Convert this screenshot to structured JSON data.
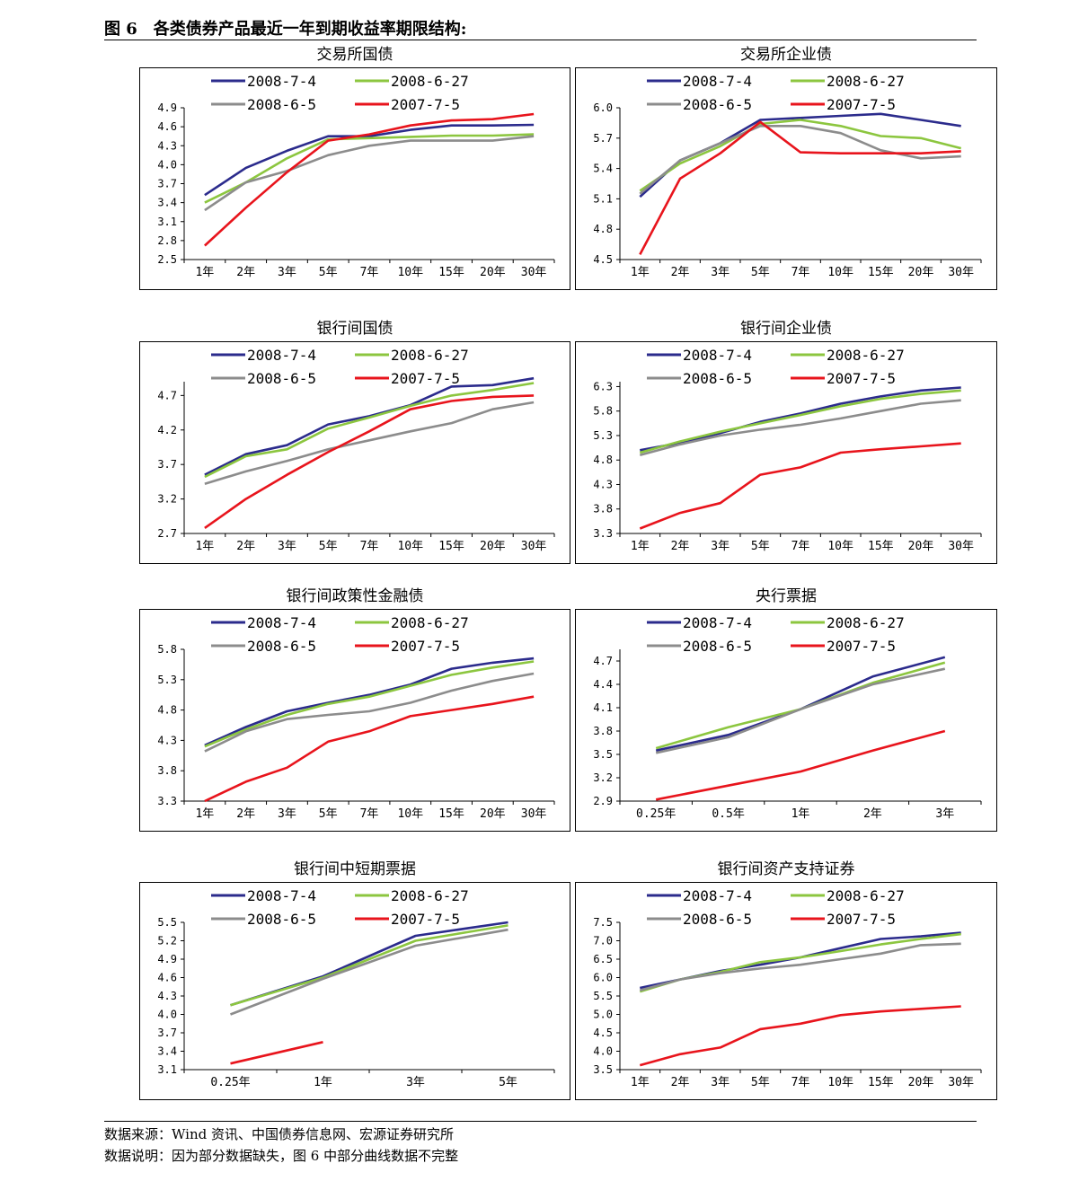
{
  "figure": {
    "title": "图 6　各类债券产品最近一年到期收益率期限结构:",
    "source": "数据来源：Wind 资讯、中国债券信息网、宏源证券研究所",
    "note": "数据说明：因为部分数据缺失，图 6 中部分曲线数据不完整"
  },
  "colors": {
    "2008-7-4": "#2B2B8C",
    "2008-6-27": "#8CC63F",
    "2008-6-5": "#8C8C8C",
    "2007-7-5": "#E8141C"
  },
  "chart_data": [
    {
      "type": "line",
      "title": "交易所国债",
      "categories": [
        "1年",
        "2年",
        "3年",
        "5年",
        "7年",
        "10年",
        "15年",
        "20年",
        "30年"
      ],
      "yticks": [
        "4.9",
        "4.6",
        "4.3",
        "4.0",
        "3.7",
        "3.4",
        "3.1",
        "2.8",
        "2.5"
      ],
      "ylim": [
        2.5,
        4.9
      ],
      "series": [
        {
          "name": "2008-7-4",
          "values": [
            3.52,
            3.95,
            4.22,
            4.45,
            4.45,
            4.55,
            4.62,
            4.62,
            4.63
          ]
        },
        {
          "name": "2008-6-27",
          "values": [
            3.4,
            3.72,
            4.1,
            4.4,
            4.42,
            4.44,
            4.46,
            4.46,
            4.48
          ]
        },
        {
          "name": "2008-6-5",
          "values": [
            3.28,
            3.72,
            3.9,
            4.15,
            4.3,
            4.38,
            4.38,
            4.38,
            4.45
          ]
        },
        {
          "name": "2007-7-5",
          "values": [
            2.72,
            3.32,
            3.88,
            4.38,
            4.48,
            4.62,
            4.7,
            4.72,
            4.8
          ]
        }
      ]
    },
    {
      "type": "line",
      "title": "交易所企业债",
      "categories": [
        "1年",
        "2年",
        "3年",
        "5年",
        "7年",
        "10年",
        "15年",
        "20年",
        "30年"
      ],
      "yticks": [
        "6.0",
        "5.7",
        "5.4",
        "5.1",
        "4.8",
        "4.5"
      ],
      "ylim": [
        4.5,
        6.0
      ],
      "series": [
        {
          "name": "2008-7-4",
          "values": [
            5.12,
            5.48,
            5.65,
            5.88,
            5.9,
            5.92,
            5.94,
            5.88,
            5.82
          ]
        },
        {
          "name": "2008-6-27",
          "values": [
            5.18,
            5.45,
            5.62,
            5.84,
            5.88,
            5.82,
            5.72,
            5.7,
            5.6
          ]
        },
        {
          "name": "2008-6-5",
          "values": [
            5.15,
            5.48,
            5.65,
            5.82,
            5.82,
            5.75,
            5.58,
            5.5,
            5.52
          ]
        },
        {
          "name": "2007-7-5",
          "values": [
            4.55,
            5.3,
            5.55,
            5.86,
            5.56,
            5.55,
            5.55,
            5.55,
            5.57
          ]
        }
      ]
    },
    {
      "type": "line",
      "title": "银行间国债",
      "categories": [
        "1年",
        "2年",
        "3年",
        "5年",
        "7年",
        "10年",
        "15年",
        "20年",
        "30年"
      ],
      "yticks": [
        "4.7",
        "4.2",
        "3.7",
        "3.2",
        "2.7"
      ],
      "ylim": [
        2.7,
        4.9
      ],
      "series": [
        {
          "name": "2008-7-4",
          "values": [
            3.55,
            3.85,
            3.98,
            4.28,
            4.4,
            4.56,
            4.83,
            4.85,
            4.95
          ]
        },
        {
          "name": "2008-6-27",
          "values": [
            3.52,
            3.82,
            3.92,
            4.22,
            4.38,
            4.55,
            4.7,
            4.78,
            4.88
          ]
        },
        {
          "name": "2008-6-5",
          "values": [
            3.42,
            3.6,
            3.75,
            3.92,
            4.05,
            4.18,
            4.3,
            4.5,
            4.6
          ]
        },
        {
          "name": "2007-7-5",
          "values": [
            2.78,
            3.2,
            3.55,
            3.88,
            4.18,
            4.5,
            4.62,
            4.68,
            4.7
          ]
        }
      ]
    },
    {
      "type": "line",
      "title": "银行间企业债",
      "categories": [
        "1年",
        "2年",
        "3年",
        "5年",
        "7年",
        "10年",
        "15年",
        "20年",
        "30年"
      ],
      "yticks": [
        "6.3",
        "5.8",
        "5.3",
        "4.8",
        "4.3",
        "3.8",
        "3.3"
      ],
      "ylim": [
        3.3,
        6.4
      ],
      "series": [
        {
          "name": "2008-7-4",
          "values": [
            5.0,
            5.15,
            5.35,
            5.58,
            5.75,
            5.95,
            6.1,
            6.22,
            6.28
          ]
        },
        {
          "name": "2008-6-27",
          "values": [
            4.95,
            5.18,
            5.38,
            5.55,
            5.72,
            5.9,
            6.05,
            6.15,
            6.22
          ]
        },
        {
          "name": "2008-6-5",
          "values": [
            4.9,
            5.12,
            5.3,
            5.42,
            5.52,
            5.65,
            5.8,
            5.95,
            6.02
          ]
        },
        {
          "name": "2007-7-5",
          "values": [
            3.4,
            3.72,
            3.92,
            4.5,
            4.65,
            4.95,
            5.02,
            5.08,
            5.14
          ]
        }
      ]
    },
    {
      "type": "line",
      "title": "银行间政策性金融债",
      "categories": [
        "1年",
        "2年",
        "3年",
        "5年",
        "7年",
        "10年",
        "15年",
        "20年",
        "30年"
      ],
      "yticks": [
        "5.8",
        "5.3",
        "4.8",
        "4.3",
        "3.8",
        "3.3"
      ],
      "ylim": [
        3.3,
        5.8
      ],
      "series": [
        {
          "name": "2008-7-4",
          "values": [
            4.22,
            4.52,
            4.78,
            4.92,
            5.05,
            5.22,
            5.48,
            5.58,
            5.65
          ]
        },
        {
          "name": "2008-6-27",
          "values": [
            4.2,
            4.48,
            4.72,
            4.9,
            5.02,
            5.2,
            5.38,
            5.5,
            5.6
          ]
        },
        {
          "name": "2008-6-5",
          "values": [
            4.12,
            4.45,
            4.65,
            4.72,
            4.78,
            4.92,
            5.12,
            5.28,
            5.4
          ]
        },
        {
          "name": "2007-7-5",
          "values": [
            3.3,
            3.62,
            3.85,
            4.28,
            4.45,
            4.7,
            4.8,
            4.9,
            5.02
          ]
        }
      ]
    },
    {
      "type": "line",
      "title": "央行票据",
      "categories": [
        "0.25年",
        "0.5年",
        "1年",
        "2年",
        "3年"
      ],
      "yticks": [
        "4.7",
        "4.4",
        "4.1",
        "3.8",
        "3.5",
        "3.2",
        "2.9"
      ],
      "ylim": [
        2.9,
        4.85
      ],
      "series": [
        {
          "name": "2008-7-4",
          "values": [
            3.55,
            3.75,
            4.08,
            4.5,
            4.75
          ]
        },
        {
          "name": "2008-6-27",
          "values": [
            3.58,
            3.85,
            4.08,
            4.42,
            4.68
          ]
        },
        {
          "name": "2008-6-5",
          "values": [
            3.52,
            3.72,
            4.08,
            4.4,
            4.6
          ]
        },
        {
          "name": "2007-7-5",
          "values": [
            2.92,
            3.1,
            3.28,
            3.55,
            3.8
          ]
        }
      ]
    },
    {
      "type": "line",
      "title": "银行间中短期票据",
      "categories": [
        "0.25年",
        "1年",
        "3年",
        "5年"
      ],
      "yticks": [
        "5.5",
        "5.2",
        "4.9",
        "4.6",
        "4.3",
        "4.0",
        "3.7",
        "3.4",
        "3.1"
      ],
      "ylim": [
        3.1,
        5.5
      ],
      "series": [
        {
          "name": "2008-7-4",
          "values": [
            4.15,
            4.62,
            5.28,
            5.5
          ]
        },
        {
          "name": "2008-6-27",
          "values": [
            4.15,
            4.6,
            5.2,
            5.45
          ]
        },
        {
          "name": "2008-6-5",
          "values": [
            4.0,
            4.58,
            5.12,
            5.38
          ]
        },
        {
          "name": "2007-7-5",
          "values": [
            3.2,
            3.55,
            null,
            null
          ]
        }
      ]
    },
    {
      "type": "line",
      "title": "银行间资产支持证券",
      "categories": [
        "1年",
        "2年",
        "3年",
        "5年",
        "7年",
        "10年",
        "15年",
        "20年",
        "30年"
      ],
      "yticks": [
        "7.5",
        "7.0",
        "6.5",
        "6.0",
        "5.5",
        "5.0",
        "4.5",
        "4.0",
        "3.5"
      ],
      "ylim": [
        3.5,
        7.5
      ],
      "series": [
        {
          "name": "2008-7-4",
          "values": [
            5.72,
            5.95,
            6.18,
            6.35,
            6.55,
            6.8,
            7.05,
            7.12,
            7.22
          ]
        },
        {
          "name": "2008-6-27",
          "values": [
            5.62,
            5.95,
            6.15,
            6.42,
            6.55,
            6.72,
            6.9,
            7.05,
            7.18
          ]
        },
        {
          "name": "2008-6-5",
          "values": [
            5.65,
            5.95,
            6.12,
            6.25,
            6.35,
            6.5,
            6.65,
            6.88,
            6.92
          ]
        },
        {
          "name": "2007-7-5",
          "values": [
            3.62,
            3.92,
            4.1,
            4.6,
            4.75,
            4.98,
            5.08,
            5.15,
            5.22
          ]
        }
      ]
    }
  ]
}
